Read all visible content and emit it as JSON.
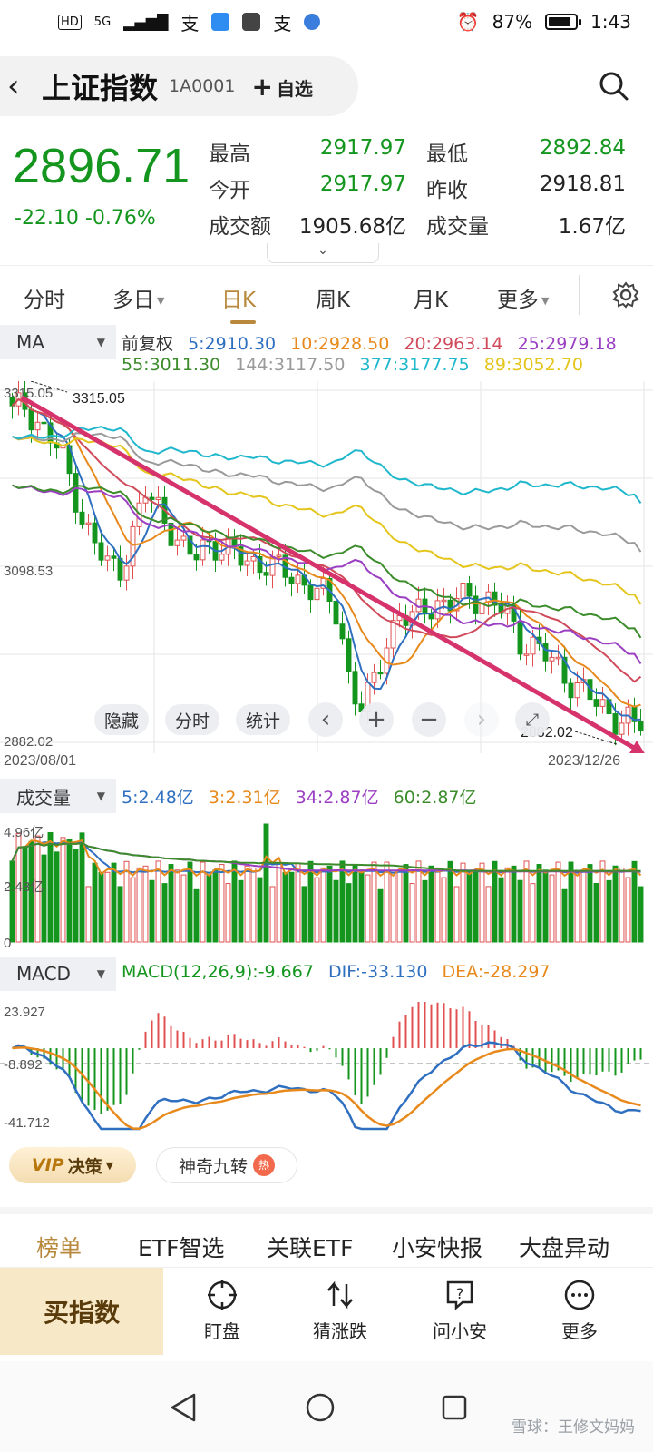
{
  "status_bar": {
    "network": "HD",
    "signal": "5G",
    "apps": [
      "支",
      "支"
    ],
    "battery": "87%",
    "battery_level": 0.87,
    "time": "1:43"
  },
  "header": {
    "title": "上证指数",
    "code": "1A0001",
    "watch_label": "自选"
  },
  "quote": {
    "price": "2896.71",
    "change": "-22.10 -0.76%",
    "fields": [
      {
        "label": "最高",
        "value": "2917.97",
        "color": "#14961e"
      },
      {
        "label": "最低",
        "value": "2892.84",
        "color": "#14961e"
      },
      {
        "label": "今开",
        "value": "2917.97",
        "color": "#14961e"
      },
      {
        "label": "昨收",
        "value": "2918.81",
        "color": "#222222"
      },
      {
        "label": "成交额",
        "value": "1905.68亿",
        "color": "#222222"
      },
      {
        "label": "成交量",
        "value": "1.67亿",
        "color": "#222222"
      }
    ]
  },
  "tabs": [
    {
      "label": "分时"
    },
    {
      "label": "多日"
    },
    {
      "label": "日K"
    },
    {
      "label": "周K"
    },
    {
      "label": "月K"
    },
    {
      "label": "更多"
    }
  ],
  "active_tab": "日K",
  "ma_panel": {
    "selector": "MA",
    "adjust": "前复权",
    "legend_row1": [
      {
        "text": "5:2910.30",
        "color": "#2f6fc0"
      },
      {
        "text": "10:2928.50",
        "color": "#e8891c"
      },
      {
        "text": "20:2963.14",
        "color": "#d04a5a"
      },
      {
        "text": "25:2979.18",
        "color": "#9b3fc2"
      }
    ],
    "legend_row2": [
      {
        "text": "55:3011.30",
        "color": "#3c8c2c"
      },
      {
        "text": "144:3117.50",
        "color": "#9a9a9a"
      },
      {
        "text": "377:3177.75",
        "color": "#1fb7cc"
      },
      {
        "text": "89:3052.70",
        "color": "#e4c51c"
      }
    ],
    "y_labels": [
      "3315.05",
      "3098.53",
      "2882.02"
    ],
    "high_marker": "3315.05",
    "low_marker": "2882.02",
    "date_start": "2023/08/01",
    "date_end": "2023/12/26",
    "controls": [
      "隐藏",
      "分时",
      "统计"
    ]
  },
  "volume_panel": {
    "selector": "成交量",
    "legend": [
      {
        "text": "5:2.48亿",
        "color": "#2f6fc0"
      },
      {
        "text": "3:2.31亿",
        "color": "#e8891c"
      },
      {
        "text": "34:2.87亿",
        "color": "#9b3fc2"
      },
      {
        "text": "60:2.87亿",
        "color": "#3c8c2c"
      }
    ],
    "y_labels": [
      "4.96亿",
      "2.48亿",
      "0"
    ]
  },
  "macd_panel": {
    "selector": "MACD",
    "legend": [
      {
        "text": "MACD(12,26,9):-9.667",
        "color": "#14961e"
      },
      {
        "text": "DIF:-33.130",
        "color": "#2f6fc0"
      },
      {
        "text": "DEA:-28.297",
        "color": "#e8891c"
      }
    ],
    "y_labels": [
      "23.927",
      "-8.892",
      "-41.712"
    ]
  },
  "vip": {
    "label": "决策",
    "prefix": "VIP"
  },
  "shenqi": {
    "label": "神奇九转",
    "badge": "热"
  },
  "categories": [
    {
      "label": "榜单"
    },
    {
      "label": "ETF智选"
    },
    {
      "label": "关联ETF"
    },
    {
      "label": "小安快报"
    },
    {
      "label": "大盘异动"
    }
  ],
  "actions": {
    "buy": "买指数",
    "items": [
      {
        "label": "盯盘",
        "icon": "target-icon"
      },
      {
        "label": "猜涨跌",
        "icon": "updown-icon"
      },
      {
        "label": "问小安",
        "icon": "question-icon"
      },
      {
        "label": "更多",
        "icon": "more-icon"
      }
    ]
  },
  "watermark": "雪球：王修文妈妈",
  "colors": {
    "down": "#14961e",
    "up": "#e05050",
    "accent": "#b8893c",
    "trend": "#d6336c"
  },
  "chart_data": [
    {
      "type": "candlestick",
      "title": "上证指数 日K",
      "x": [
        "2023/08/01",
        "2023/12/26"
      ],
      "ylim": [
        2882.02,
        3315.05
      ],
      "close_path": [
        3290,
        3300,
        3280,
        3260,
        3240,
        3200,
        3150,
        3120,
        3100,
        3098,
        3140,
        3190,
        3175,
        3150,
        3120,
        3110,
        3130,
        3125,
        3115,
        3110,
        3105,
        3102,
        3095,
        3090,
        3080,
        3070,
        3060,
        3040,
        2950,
        2920,
        2960,
        3010,
        3040,
        3030,
        3050,
        3055,
        3048,
        3060,
        3065,
        3058,
        3050,
        3040,
        3010,
        3000,
        2990,
        2980,
        2960,
        2945,
        2935,
        2925,
        2910,
        2905,
        2896.71
      ],
      "ma": {
        "5": 2910.3,
        "10": 2928.5,
        "20": 2963.14,
        "25": 2979.18,
        "55": 3011.3,
        "144": 3117.5,
        "377": 3177.75,
        "89": 3052.7
      },
      "trendline": {
        "from": 3315.05,
        "to": 2882.02
      }
    },
    {
      "type": "bar",
      "title": "成交量",
      "ylim": [
        0,
        4.96
      ],
      "ma": {
        "5": 2.48,
        "3": 2.31,
        "34": 2.87,
        "60": 2.87
      }
    },
    {
      "type": "bar",
      "title": "MACD",
      "ylim": [
        -41.712,
        23.927
      ],
      "macd": -9.667,
      "dif": -33.13,
      "dea": -28.297
    }
  ]
}
